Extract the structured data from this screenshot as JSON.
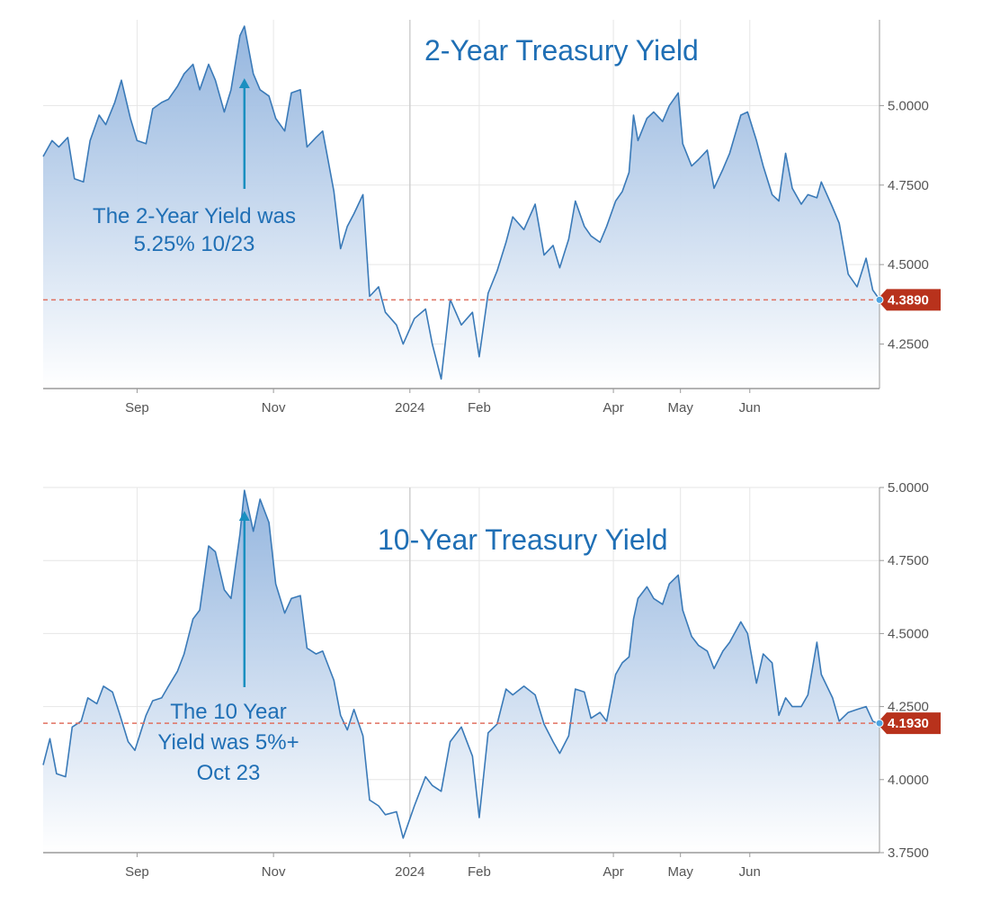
{
  "colors": {
    "line": "#3a7ab8",
    "area_top": "#8fb2dd",
    "area_bottom": "#ffffff",
    "grid": "#e6e6e6",
    "axis": "#9a9a9a",
    "ref_line": "#e07060",
    "badge": "#b8321c",
    "badge_dot": "#4da3e0",
    "title": "#1f6fb5"
  },
  "chart_data": [
    {
      "type": "area",
      "title": "2-Year Treasury Yield",
      "annotation": {
        "lines": [
          "The 2-Year Yield was",
          "5.25% 10/23"
        ],
        "arrow_to_date": "2023-10-19"
      },
      "x_ticks": [
        {
          "date": "2023-09-01",
          "label": "Sep"
        },
        {
          "date": "2023-11-01",
          "label": "Nov"
        },
        {
          "date": "2024-01-01",
          "label": "2024"
        },
        {
          "date": "2024-02-01",
          "label": "Feb"
        },
        {
          "date": "2024-04-01",
          "label": "Apr"
        },
        {
          "date": "2024-05-01",
          "label": "May"
        },
        {
          "date": "2024-06-01",
          "label": "Jun"
        }
      ],
      "y_ticks": [
        "4.2500",
        "4.5000",
        "4.7500",
        "5.0000"
      ],
      "ylim": [
        4.11,
        5.27
      ],
      "xlim": [
        "2023-07-21",
        "2024-07-29"
      ],
      "current_value": "4.3890",
      "points": [
        [
          "2023-07-21",
          4.84
        ],
        [
          "2023-07-25",
          4.89
        ],
        [
          "2023-07-28",
          4.87
        ],
        [
          "2023-08-01",
          4.9
        ],
        [
          "2023-08-04",
          4.77
        ],
        [
          "2023-08-08",
          4.76
        ],
        [
          "2023-08-11",
          4.89
        ],
        [
          "2023-08-15",
          4.97
        ],
        [
          "2023-08-18",
          4.94
        ],
        [
          "2023-08-22",
          5.01
        ],
        [
          "2023-08-25",
          5.08
        ],
        [
          "2023-08-29",
          4.96
        ],
        [
          "2023-09-01",
          4.89
        ],
        [
          "2023-09-05",
          4.88
        ],
        [
          "2023-09-08",
          4.99
        ],
        [
          "2023-09-12",
          5.01
        ],
        [
          "2023-09-15",
          5.02
        ],
        [
          "2023-09-19",
          5.06
        ],
        [
          "2023-09-22",
          5.1
        ],
        [
          "2023-09-26",
          5.13
        ],
        [
          "2023-09-29",
          5.05
        ],
        [
          "2023-10-03",
          5.13
        ],
        [
          "2023-10-06",
          5.08
        ],
        [
          "2023-10-10",
          4.98
        ],
        [
          "2023-10-13",
          5.05
        ],
        [
          "2023-10-17",
          5.22
        ],
        [
          "2023-10-19",
          5.25
        ],
        [
          "2023-10-23",
          5.1
        ],
        [
          "2023-10-26",
          5.05
        ],
        [
          "2023-10-30",
          5.03
        ],
        [
          "2023-11-02",
          4.96
        ],
        [
          "2023-11-06",
          4.92
        ],
        [
          "2023-11-09",
          5.04
        ],
        [
          "2023-11-13",
          5.05
        ],
        [
          "2023-11-16",
          4.87
        ],
        [
          "2023-11-20",
          4.9
        ],
        [
          "2023-11-23",
          4.92
        ],
        [
          "2023-11-28",
          4.73
        ],
        [
          "2023-12-01",
          4.55
        ],
        [
          "2023-12-04",
          4.62
        ],
        [
          "2023-12-07",
          4.66
        ],
        [
          "2023-12-11",
          4.72
        ],
        [
          "2023-12-14",
          4.4
        ],
        [
          "2023-12-18",
          4.43
        ],
        [
          "2023-12-21",
          4.35
        ],
        [
          "2023-12-26",
          4.31
        ],
        [
          "2023-12-29",
          4.25
        ],
        [
          "2024-01-03",
          4.33
        ],
        [
          "2024-01-08",
          4.36
        ],
        [
          "2024-01-11",
          4.25
        ],
        [
          "2024-01-15",
          4.14
        ],
        [
          "2024-01-19",
          4.39
        ],
        [
          "2024-01-24",
          4.31
        ],
        [
          "2024-01-29",
          4.35
        ],
        [
          "2024-02-01",
          4.21
        ],
        [
          "2024-02-05",
          4.41
        ],
        [
          "2024-02-09",
          4.48
        ],
        [
          "2024-02-13",
          4.57
        ],
        [
          "2024-02-16",
          4.65
        ],
        [
          "2024-02-21",
          4.61
        ],
        [
          "2024-02-26",
          4.69
        ],
        [
          "2024-03-01",
          4.53
        ],
        [
          "2024-03-05",
          4.56
        ],
        [
          "2024-03-08",
          4.49
        ],
        [
          "2024-03-12",
          4.58
        ],
        [
          "2024-03-15",
          4.7
        ],
        [
          "2024-03-19",
          4.62
        ],
        [
          "2024-03-22",
          4.59
        ],
        [
          "2024-03-26",
          4.57
        ],
        [
          "2024-03-29",
          4.62
        ],
        [
          "2024-04-02",
          4.7
        ],
        [
          "2024-04-05",
          4.73
        ],
        [
          "2024-04-08",
          4.79
        ],
        [
          "2024-04-10",
          4.97
        ],
        [
          "2024-04-12",
          4.89
        ],
        [
          "2024-04-16",
          4.96
        ],
        [
          "2024-04-19",
          4.98
        ],
        [
          "2024-04-23",
          4.95
        ],
        [
          "2024-04-26",
          5.0
        ],
        [
          "2024-04-30",
          5.04
        ],
        [
          "2024-05-02",
          4.88
        ],
        [
          "2024-05-06",
          4.81
        ],
        [
          "2024-05-09",
          4.83
        ],
        [
          "2024-05-13",
          4.86
        ],
        [
          "2024-05-16",
          4.74
        ],
        [
          "2024-05-20",
          4.8
        ],
        [
          "2024-05-23",
          4.85
        ],
        [
          "2024-05-28",
          4.97
        ],
        [
          "2024-05-31",
          4.98
        ],
        [
          "2024-06-04",
          4.89
        ],
        [
          "2024-06-07",
          4.81
        ],
        [
          "2024-06-11",
          4.72
        ],
        [
          "2024-06-14",
          4.7
        ],
        [
          "2024-06-17",
          4.85
        ],
        [
          "2024-06-20",
          4.74
        ],
        [
          "2024-06-24",
          4.69
        ],
        [
          "2024-06-27",
          4.72
        ],
        [
          "2024-07-01",
          4.71
        ],
        [
          "2024-07-03",
          4.76
        ],
        [
          "2024-07-08",
          4.68
        ],
        [
          "2024-07-11",
          4.63
        ],
        [
          "2024-07-15",
          4.47
        ],
        [
          "2024-07-19",
          4.43
        ],
        [
          "2024-07-23",
          4.52
        ],
        [
          "2024-07-26",
          4.42
        ],
        [
          "2024-07-29",
          4.39
        ]
      ]
    },
    {
      "type": "area",
      "title": "10-Year Treasury Yield",
      "annotation": {
        "lines": [
          "The 10 Year",
          "Yield was 5%+",
          "Oct 23"
        ],
        "arrow_to_date": "2023-10-19"
      },
      "x_ticks": [
        {
          "date": "2023-09-01",
          "label": "Sep"
        },
        {
          "date": "2023-11-01",
          "label": "Nov"
        },
        {
          "date": "2024-01-01",
          "label": "2024"
        },
        {
          "date": "2024-02-01",
          "label": "Feb"
        },
        {
          "date": "2024-04-01",
          "label": "Apr"
        },
        {
          "date": "2024-05-01",
          "label": "May"
        },
        {
          "date": "2024-06-01",
          "label": "Jun"
        }
      ],
      "y_ticks": [
        "3.7500",
        "4.0000",
        "4.2500",
        "4.5000",
        "4.7500",
        "5.0000"
      ],
      "ylim": [
        3.75,
        5.0
      ],
      "xlim": [
        "2023-07-21",
        "2024-07-29"
      ],
      "current_value": "4.1930",
      "points": [
        [
          "2023-07-21",
          4.05
        ],
        [
          "2023-07-24",
          4.14
        ],
        [
          "2023-07-27",
          4.02
        ],
        [
          "2023-07-31",
          4.01
        ],
        [
          "2023-08-03",
          4.18
        ],
        [
          "2023-08-07",
          4.2
        ],
        [
          "2023-08-10",
          4.28
        ],
        [
          "2023-08-14",
          4.26
        ],
        [
          "2023-08-17",
          4.32
        ],
        [
          "2023-08-21",
          4.3
        ],
        [
          "2023-08-24",
          4.23
        ],
        [
          "2023-08-28",
          4.13
        ],
        [
          "2023-08-31",
          4.1
        ],
        [
          "2023-09-05",
          4.22
        ],
        [
          "2023-09-08",
          4.27
        ],
        [
          "2023-09-12",
          4.28
        ],
        [
          "2023-09-15",
          4.32
        ],
        [
          "2023-09-19",
          4.37
        ],
        [
          "2023-09-22",
          4.43
        ],
        [
          "2023-09-26",
          4.55
        ],
        [
          "2023-09-29",
          4.58
        ],
        [
          "2023-10-03",
          4.8
        ],
        [
          "2023-10-06",
          4.78
        ],
        [
          "2023-10-10",
          4.65
        ],
        [
          "2023-10-13",
          4.62
        ],
        [
          "2023-10-17",
          4.84
        ],
        [
          "2023-10-19",
          4.99
        ],
        [
          "2023-10-23",
          4.85
        ],
        [
          "2023-10-26",
          4.96
        ],
        [
          "2023-10-30",
          4.88
        ],
        [
          "2023-11-02",
          4.67
        ],
        [
          "2023-11-06",
          4.57
        ],
        [
          "2023-11-09",
          4.62
        ],
        [
          "2023-11-13",
          4.63
        ],
        [
          "2023-11-16",
          4.45
        ],
        [
          "2023-11-20",
          4.43
        ],
        [
          "2023-11-23",
          4.44
        ],
        [
          "2023-11-28",
          4.34
        ],
        [
          "2023-12-01",
          4.22
        ],
        [
          "2023-12-04",
          4.17
        ],
        [
          "2023-12-07",
          4.24
        ],
        [
          "2023-12-11",
          4.15
        ],
        [
          "2023-12-14",
          3.93
        ],
        [
          "2023-12-18",
          3.91
        ],
        [
          "2023-12-21",
          3.88
        ],
        [
          "2023-12-26",
          3.89
        ],
        [
          "2023-12-29",
          3.8
        ],
        [
          "2024-01-03",
          3.91
        ],
        [
          "2024-01-08",
          4.01
        ],
        [
          "2024-01-11",
          3.98
        ],
        [
          "2024-01-15",
          3.96
        ],
        [
          "2024-01-19",
          4.13
        ],
        [
          "2024-01-24",
          4.18
        ],
        [
          "2024-01-29",
          4.08
        ],
        [
          "2024-02-01",
          3.87
        ],
        [
          "2024-02-05",
          4.16
        ],
        [
          "2024-02-09",
          4.19
        ],
        [
          "2024-02-13",
          4.31
        ],
        [
          "2024-02-16",
          4.29
        ],
        [
          "2024-02-21",
          4.32
        ],
        [
          "2024-02-26",
          4.29
        ],
        [
          "2024-03-01",
          4.19
        ],
        [
          "2024-03-05",
          4.13
        ],
        [
          "2024-03-08",
          4.09
        ],
        [
          "2024-03-12",
          4.15
        ],
        [
          "2024-03-15",
          4.31
        ],
        [
          "2024-03-19",
          4.3
        ],
        [
          "2024-03-22",
          4.21
        ],
        [
          "2024-03-26",
          4.23
        ],
        [
          "2024-03-29",
          4.2
        ],
        [
          "2024-04-02",
          4.36
        ],
        [
          "2024-04-05",
          4.4
        ],
        [
          "2024-04-08",
          4.42
        ],
        [
          "2024-04-10",
          4.55
        ],
        [
          "2024-04-12",
          4.62
        ],
        [
          "2024-04-16",
          4.66
        ],
        [
          "2024-04-19",
          4.62
        ],
        [
          "2024-04-23",
          4.6
        ],
        [
          "2024-04-26",
          4.67
        ],
        [
          "2024-04-30",
          4.7
        ],
        [
          "2024-05-02",
          4.58
        ],
        [
          "2024-05-06",
          4.49
        ],
        [
          "2024-05-09",
          4.46
        ],
        [
          "2024-05-13",
          4.44
        ],
        [
          "2024-05-16",
          4.38
        ],
        [
          "2024-05-20",
          4.44
        ],
        [
          "2024-05-23",
          4.47
        ],
        [
          "2024-05-28",
          4.54
        ],
        [
          "2024-05-31",
          4.5
        ],
        [
          "2024-06-04",
          4.33
        ],
        [
          "2024-06-07",
          4.43
        ],
        [
          "2024-06-11",
          4.4
        ],
        [
          "2024-06-14",
          4.22
        ],
        [
          "2024-06-17",
          4.28
        ],
        [
          "2024-06-20",
          4.25
        ],
        [
          "2024-06-24",
          4.25
        ],
        [
          "2024-06-27",
          4.29
        ],
        [
          "2024-07-01",
          4.47
        ],
        [
          "2024-07-03",
          4.36
        ],
        [
          "2024-07-08",
          4.28
        ],
        [
          "2024-07-11",
          4.2
        ],
        [
          "2024-07-15",
          4.23
        ],
        [
          "2024-07-19",
          4.24
        ],
        [
          "2024-07-23",
          4.25
        ],
        [
          "2024-07-26",
          4.2
        ],
        [
          "2024-07-29",
          4.19
        ]
      ]
    }
  ]
}
